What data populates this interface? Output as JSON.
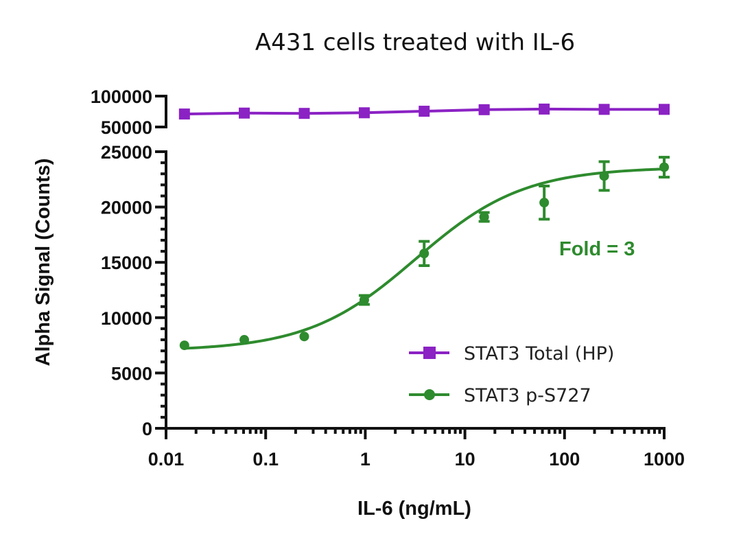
{
  "chart_data": {
    "type": "line",
    "title": "A431 cells treated with IL-6",
    "xlabel": "IL-6 (ng/mL)",
    "ylabel": "Alpha Signal (Counts)",
    "x_scale": "log",
    "xlim": [
      0.01,
      1000
    ],
    "x_ticks": [
      0.01,
      0.1,
      1,
      10,
      100,
      1000
    ],
    "x_tick_labels": [
      "0.01",
      "0.1",
      "1",
      "10",
      "100",
      "1000"
    ],
    "y_axis_segments": [
      {
        "ylim": [
          50000,
          100000
        ],
        "ticks": [
          50000,
          100000
        ],
        "tick_labels": [
          "50000",
          "100000"
        ]
      },
      {
        "ylim": [
          0,
          25000
        ],
        "ticks": [
          0,
          5000,
          10000,
          15000,
          20000,
          25000
        ],
        "tick_labels": [
          "0",
          "5000",
          "10000",
          "15000",
          "20000",
          "25000"
        ]
      }
    ],
    "annotation": {
      "text": "Fold = 3",
      "color": "#2e8b2e"
    },
    "legend": {
      "placement": "lower-right"
    },
    "series": [
      {
        "name": "STAT3 Total (HP)",
        "color": "#8b22c4",
        "marker": "square",
        "segment": 0,
        "x": [
          0.0153,
          0.061,
          0.244,
          0.977,
          3.9,
          15.6,
          62.5,
          250,
          1000
        ],
        "y": [
          71000,
          72500,
          72000,
          73000,
          75500,
          78000,
          79000,
          78500,
          78500
        ],
        "err": [
          0,
          0,
          0,
          0,
          0,
          5000,
          0,
          0,
          0
        ]
      },
      {
        "name": "STAT3 p-S727",
        "color": "#2e8b2e",
        "marker": "circle",
        "segment": 1,
        "x": [
          0.0153,
          0.061,
          0.244,
          0.977,
          3.9,
          15.6,
          62.5,
          250,
          1000
        ],
        "y": [
          7500,
          8000,
          8300,
          11600,
          15800,
          19100,
          20400,
          22800,
          23600
        ],
        "err": [
          0,
          0,
          0,
          400,
          1100,
          400,
          1500,
          1300,
          900
        ],
        "fit": {
          "bottom": 7000,
          "top": 23600,
          "ec50": 3.2,
          "hill": 0.8
        }
      }
    ]
  }
}
